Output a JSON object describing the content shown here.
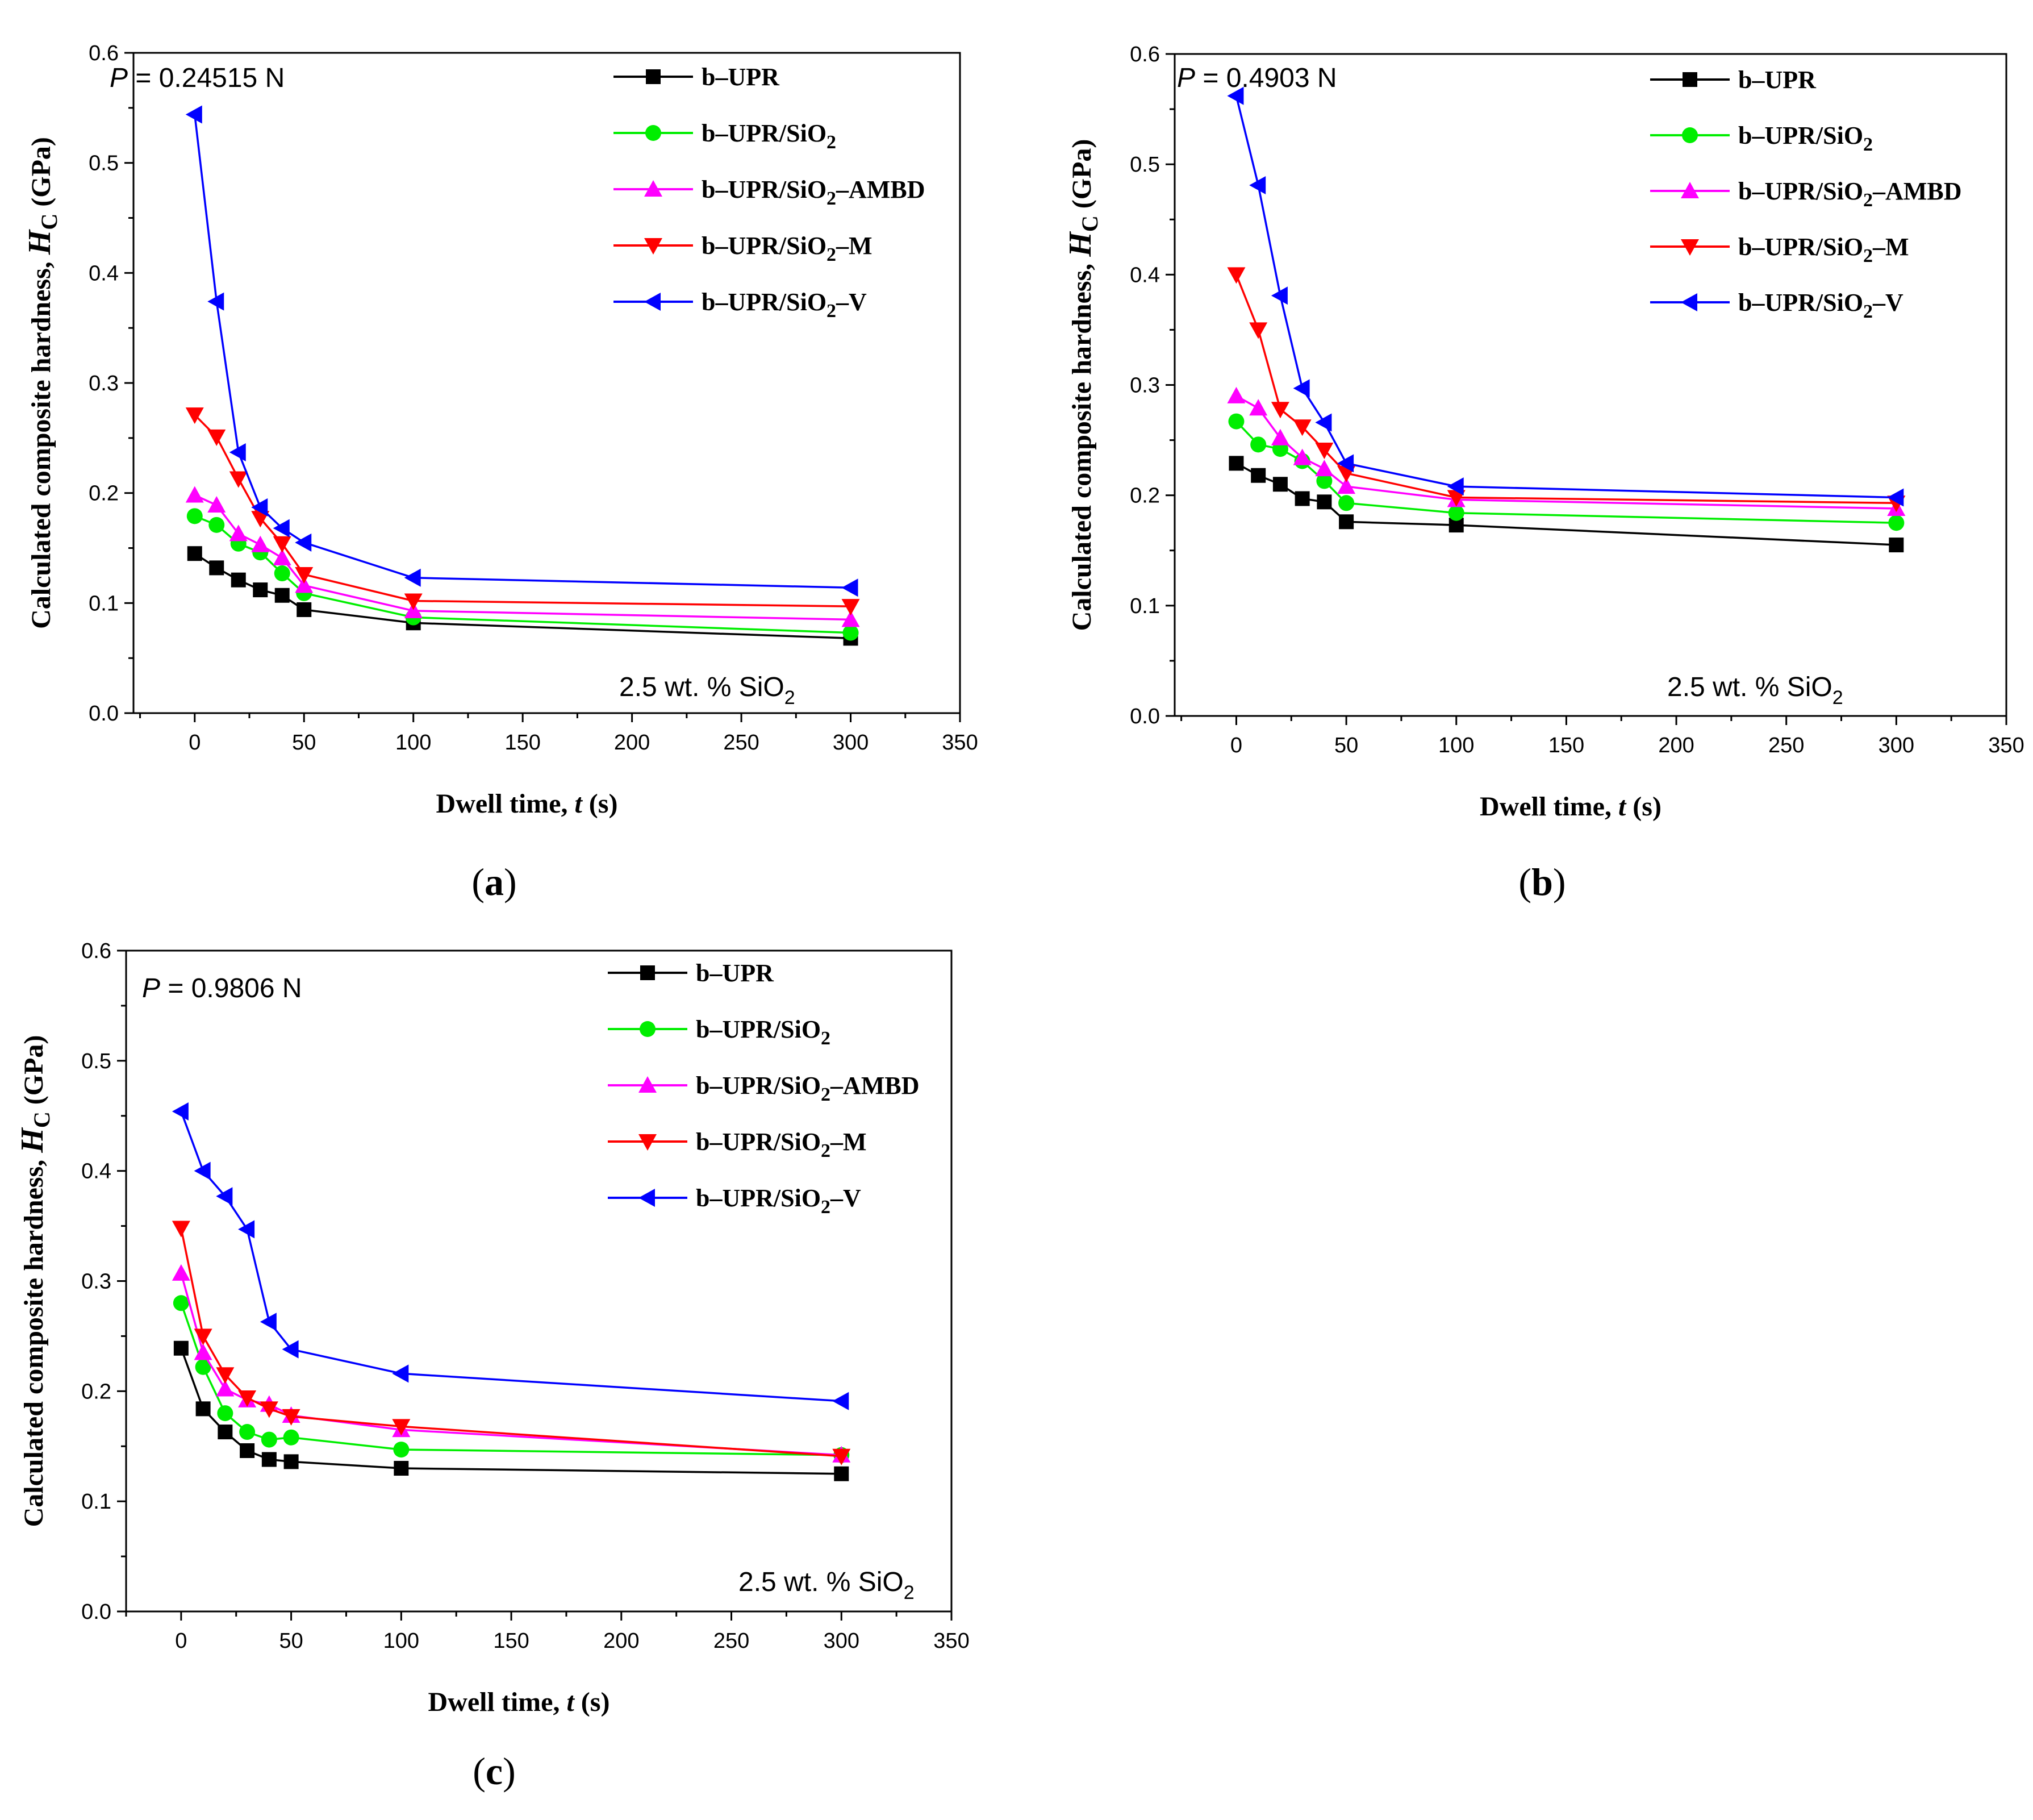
{
  "chart_data": [
    {
      "type": "line",
      "panel_label": "a",
      "caption_open": "(",
      "caption_close": ")",
      "load_prefix": "P",
      "load_text": " = 0.24515 N",
      "note_main": "2.5 wt. % SiO",
      "note_sub": "2",
      "xlabel_main": "Dwell time, ",
      "xlabel_var": "t",
      "xlabel_unit": " (s)",
      "ylabel_main": "Calculated composite hardness, ",
      "ylabel_var": "H",
      "ylabel_sub": "C",
      "ylabel_unit": " (GPa)",
      "xlim": [
        -28,
        350
      ],
      "ylim": [
        0,
        0.6
      ],
      "xticks": [
        "0",
        "50",
        "100",
        "150",
        "200",
        "250",
        "300",
        "350"
      ],
      "yticks": [
        "0.0",
        "0.1",
        "0.2",
        "0.3",
        "0.4",
        "0.5",
        "0.6"
      ],
      "x": [
        0,
        10,
        20,
        30,
        40,
        50,
        100,
        300
      ],
      "series": [
        {
          "name": "b–UPR",
          "values": [
            0.145,
            0.132,
            0.121,
            0.112,
            0.107,
            0.094,
            0.082,
            0.068
          ]
        },
        {
          "name": "b–UPR/SiO2",
          "values": [
            0.179,
            0.171,
            0.154,
            0.146,
            0.127,
            0.109,
            0.087,
            0.073
          ]
        },
        {
          "name": "b–UPR/SiO2–AMBD",
          "values": [
            0.198,
            0.189,
            0.163,
            0.153,
            0.141,
            0.116,
            0.093,
            0.085
          ]
        },
        {
          "name": "b–UPR/SiO2–M",
          "values": [
            0.271,
            0.251,
            0.213,
            0.177,
            0.154,
            0.126,
            0.102,
            0.097
          ]
        },
        {
          "name": "b–UPR/SiO2–V",
          "values": [
            0.544,
            0.374,
            0.237,
            0.187,
            0.168,
            0.155,
            0.123,
            0.114
          ]
        }
      ]
    },
    {
      "type": "line",
      "panel_label": "b",
      "caption_open": "(",
      "caption_close": ")",
      "load_prefix": "P",
      "load_text": " = 0.4903 N",
      "note_main": "2.5 wt. % SiO",
      "note_sub": "2",
      "xlabel_main": "Dwell time, ",
      "xlabel_var": "t",
      "xlabel_unit": " (s)",
      "ylabel_main": "Calculated composite hardness, ",
      "ylabel_var": "H",
      "ylabel_sub": "C",
      "ylabel_unit": " (GPa)",
      "xlim": [
        -28,
        350
      ],
      "ylim": [
        0,
        0.6
      ],
      "xticks": [
        "0",
        "50",
        "100",
        "150",
        "200",
        "250",
        "300",
        "350"
      ],
      "yticks": [
        "0.0",
        "0.1",
        "0.2",
        "0.3",
        "0.4",
        "0.5",
        "0.6"
      ],
      "x": [
        0,
        10,
        20,
        30,
        40,
        50,
        100,
        300
      ],
      "series": [
        {
          "name": "b–UPR",
          "values": [
            0.229,
            0.218,
            0.21,
            0.197,
            0.194,
            0.176,
            0.173,
            0.155
          ]
        },
        {
          "name": "b–UPR/SiO2",
          "values": [
            0.267,
            0.246,
            0.242,
            0.231,
            0.213,
            0.193,
            0.184,
            0.175
          ]
        },
        {
          "name": "b–UPR/SiO2–AMBD",
          "values": [
            0.29,
            0.279,
            0.252,
            0.234,
            0.224,
            0.208,
            0.196,
            0.188
          ]
        },
        {
          "name": "b–UPR/SiO2–M",
          "values": [
            0.4,
            0.35,
            0.278,
            0.262,
            0.241,
            0.22,
            0.198,
            0.193
          ]
        },
        {
          "name": "b–UPR/SiO2–V",
          "values": [
            0.562,
            0.481,
            0.381,
            0.297,
            0.266,
            0.229,
            0.208,
            0.198
          ]
        }
      ]
    },
    {
      "type": "line",
      "panel_label": "c",
      "caption_open": "(",
      "caption_close": ")",
      "load_prefix": "P",
      "load_text": " = 0.9806 N",
      "note_main": "2.5 wt. % SiO",
      "note_sub": "2",
      "xlabel_main": "Dwell time, ",
      "xlabel_var": "t",
      "xlabel_unit": " (s)",
      "ylabel_main": "Calculated composite hardness, ",
      "ylabel_var": "H",
      "ylabel_sub": "C",
      "ylabel_unit": " (GPa)",
      "xlim": [
        -25,
        350
      ],
      "ylim": [
        0,
        0.6
      ],
      "xticks": [
        "0",
        "50",
        "100",
        "150",
        "200",
        "250",
        "300",
        "350"
      ],
      "yticks": [
        "0.0",
        "0.1",
        "0.2",
        "0.3",
        "0.4",
        "0.5",
        "0.6"
      ],
      "x": [
        0,
        10,
        20,
        30,
        40,
        50,
        100,
        300
      ],
      "series": [
        {
          "name": "b–UPR",
          "values": [
            0.239,
            0.184,
            0.163,
            0.146,
            0.138,
            0.136,
            0.13,
            0.125
          ]
        },
        {
          "name": "b–UPR/SiO2",
          "values": [
            0.28,
            0.222,
            0.18,
            0.163,
            0.156,
            0.158,
            0.147,
            0.142
          ]
        },
        {
          "name": "b–UPR/SiO2–AMBD",
          "values": [
            0.307,
            0.235,
            0.202,
            0.192,
            0.188,
            0.178,
            0.165,
            0.142
          ]
        },
        {
          "name": "b–UPR/SiO2–M",
          "values": [
            0.348,
            0.25,
            0.215,
            0.194,
            0.184,
            0.177,
            0.168,
            0.141
          ]
        },
        {
          "name": "b–UPR/SiO2–V",
          "values": [
            0.454,
            0.4,
            0.377,
            0.347,
            0.263,
            0.238,
            0.216,
            0.191
          ]
        }
      ]
    }
  ],
  "legend_entries": [
    {
      "main": "b–UPR",
      "sub": "",
      "tail": "",
      "color": "#000000",
      "marker": "square"
    },
    {
      "main": "b–UPR/SiO",
      "sub": "2",
      "tail": "",
      "color": "#00ee00",
      "marker": "circle"
    },
    {
      "main": "b–UPR/SiO",
      "sub": "2",
      "tail": "–AMBD",
      "color": "#ff00ff",
      "marker": "triangle-up"
    },
    {
      "main": "b–UPR/SiO",
      "sub": "2",
      "tail": "–M",
      "color": "#ff0000",
      "marker": "triangle-down"
    },
    {
      "main": "b–UPR/SiO",
      "sub": "2",
      "tail": "–V",
      "color": "#0000ff",
      "marker": "triangle-left"
    }
  ]
}
